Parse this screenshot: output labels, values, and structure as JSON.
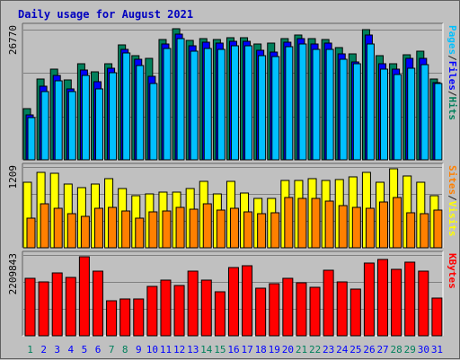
{
  "title": "Daily usage for August 2021",
  "colors": {
    "hits": "#00805c",
    "files": "#00c0ff",
    "pages": "#0000ff",
    "visits": "#ffff00",
    "sites": "#ff8000",
    "kbytes": "#ff0000",
    "weekday_label": "#0000ff",
    "weekend_label": "#00805c",
    "plot_bg": "#c0c0c0",
    "grid": "#808080",
    "title": "#0000c0"
  },
  "chart_data": [
    {
      "type": "bar",
      "panel": "top",
      "ymax_label": "26770",
      "ylim": [
        0,
        26770
      ],
      "legend": [
        {
          "text": "Pages",
          "color": "#00c0ff"
        },
        {
          "text": "/",
          "color": "#202020"
        },
        {
          "text": "Files",
          "color": "#0000ff"
        },
        {
          "text": "/",
          "color": "#202020"
        },
        {
          "text": "Hits",
          "color": "#00805c"
        }
      ],
      "series": [
        {
          "name": "Hits",
          "color": "#00805c",
          "values": [
            10400,
            16500,
            18500,
            16400,
            19700,
            17900,
            19700,
            23500,
            21300,
            20700,
            24500,
            26770,
            24400,
            24800,
            24600,
            25000,
            25000,
            23700,
            23800,
            24800,
            25400,
            24800,
            24500,
            23000,
            21700,
            26500,
            21300,
            19700,
            21500,
            22100,
            16500
          ]
        },
        {
          "name": "Files",
          "color": "#0000ff",
          "values": [
            9200,
            15000,
            17300,
            14500,
            18400,
            16000,
            18700,
            22500,
            20500,
            17000,
            23700,
            25600,
            23200,
            24000,
            23800,
            24200,
            24200,
            22300,
            22000,
            24000,
            24700,
            23600,
            23900,
            21600,
            20000,
            25500,
            19700,
            18500,
            20800,
            20800,
            15800
          ]
        },
        {
          "name": "Pages",
          "color": "#00c0ff",
          "values": [
            8700,
            14000,
            16200,
            14000,
            17300,
            14500,
            17700,
            21800,
            19300,
            15500,
            22800,
            24800,
            22100,
            22800,
            22500,
            23200,
            23200,
            21200,
            21000,
            23100,
            23600,
            22600,
            22600,
            20500,
            19600,
            23600,
            18500,
            17500,
            18700,
            19400,
            15600
          ]
        }
      ],
      "categories": [
        "1",
        "2",
        "3",
        "4",
        "5",
        "6",
        "7",
        "8",
        "9",
        "10",
        "11",
        "12",
        "13",
        "14",
        "15",
        "16",
        "17",
        "18",
        "19",
        "20",
        "21",
        "22",
        "23",
        "24",
        "25",
        "26",
        "27",
        "28",
        "29",
        "30",
        "31"
      ]
    },
    {
      "type": "bar",
      "panel": "middle",
      "ymax_label": "1209",
      "ylim": [
        0,
        1209
      ],
      "legend": [
        {
          "text": "Sites",
          "color": "#ff8000"
        },
        {
          "text": "/",
          "color": "#202020"
        },
        {
          "text": "Visits",
          "color": "#ffff00"
        }
      ],
      "series": [
        {
          "name": "Visits",
          "color": "#ffff00",
          "values": [
            1000,
            1150,
            1140,
            970,
            920,
            970,
            1060,
            910,
            790,
            830,
            850,
            850,
            900,
            1020,
            820,
            1020,
            840,
            750,
            760,
            1030,
            1030,
            1060,
            1030,
            1040,
            1080,
            1150,
            1000,
            1209,
            1100,
            1000,
            800
          ]
        },
        {
          "name": "Sites",
          "color": "#ff8000",
          "values": [
            460,
            670,
            610,
            520,
            480,
            600,
            620,
            560,
            450,
            550,
            560,
            620,
            590,
            670,
            580,
            610,
            550,
            520,
            540,
            770,
            760,
            750,
            710,
            650,
            620,
            600,
            700,
            770,
            540,
            520,
            580
          ]
        }
      ]
    },
    {
      "type": "bar",
      "panel": "bottom",
      "ymax_label": "2209843",
      "ylim": [
        0,
        2209843
      ],
      "legend": [
        {
          "text": "KBytes",
          "color": "#ff0000"
        }
      ],
      "series": [
        {
          "name": "KBytes",
          "color": "#ff0000",
          "values": [
            1600000,
            1500000,
            1750000,
            1630000,
            2209843,
            1810000,
            980000,
            1040000,
            1030000,
            1390000,
            1560000,
            1410000,
            1800000,
            1560000,
            1230000,
            1920000,
            1950000,
            1320000,
            1460000,
            1600000,
            1470000,
            1350000,
            1840000,
            1510000,
            1310000,
            2030000,
            2130000,
            1850000,
            2060000,
            1800000,
            1050000
          ]
        }
      ]
    }
  ],
  "x_labels": [
    "1",
    "2",
    "3",
    "4",
    "5",
    "6",
    "7",
    "8",
    "9",
    "10",
    "11",
    "12",
    "13",
    "14",
    "15",
    "16",
    "17",
    "18",
    "19",
    "20",
    "21",
    "22",
    "23",
    "24",
    "25",
    "26",
    "27",
    "28",
    "29",
    "30",
    "31"
  ],
  "weekend_days": [
    1,
    7,
    8,
    14,
    15,
    21,
    22,
    28,
    29
  ]
}
